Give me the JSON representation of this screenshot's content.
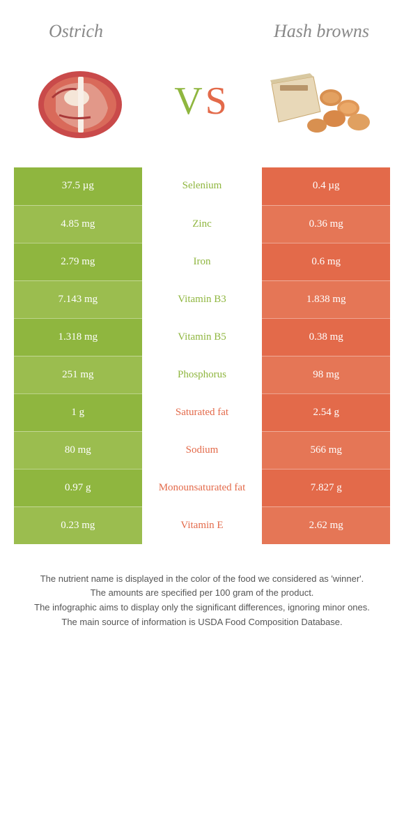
{
  "colors": {
    "left": "#8fb63f",
    "right": "#e36a4a",
    "leftAlt": "#9bbd4f",
    "rightAlt": "#e57656",
    "white": "#ffffff",
    "titleGray": "#888888"
  },
  "header": {
    "leftTitle": "Ostrich",
    "rightTitle": "Hash browns",
    "vs_v": "V",
    "vs_s": "S"
  },
  "rows": [
    {
      "left": "37.5 µg",
      "label": "Selenium",
      "right": "0.4 µg",
      "winner": "left"
    },
    {
      "left": "4.85 mg",
      "label": "Zinc",
      "right": "0.36 mg",
      "winner": "left"
    },
    {
      "left": "2.79 mg",
      "label": "Iron",
      "right": "0.6 mg",
      "winner": "left"
    },
    {
      "left": "7.143 mg",
      "label": "Vitamin B3",
      "right": "1.838 mg",
      "winner": "left"
    },
    {
      "left": "1.318 mg",
      "label": "Vitamin B5",
      "right": "0.38 mg",
      "winner": "left"
    },
    {
      "left": "251 mg",
      "label": "Phosphorus",
      "right": "98 mg",
      "winner": "left"
    },
    {
      "left": "1 g",
      "label": "Saturated fat",
      "right": "2.54 g",
      "winner": "right"
    },
    {
      "left": "80 mg",
      "label": "Sodium",
      "right": "566 mg",
      "winner": "right"
    },
    {
      "left": "0.97 g",
      "label": "Monounsaturated fat",
      "right": "7.827 g",
      "winner": "right"
    },
    {
      "left": "0.23 mg",
      "label": "Vitamin E",
      "right": "2.62 mg",
      "winner": "right"
    }
  ],
  "footnotes": [
    "The nutrient name is displayed in the color of the food we considered as 'winner'.",
    "The amounts are specified per 100 gram of the product.",
    "The infographic aims to display only the significant differences, ignoring minor ones.",
    "The main source of information is USDA Food Composition Database."
  ]
}
